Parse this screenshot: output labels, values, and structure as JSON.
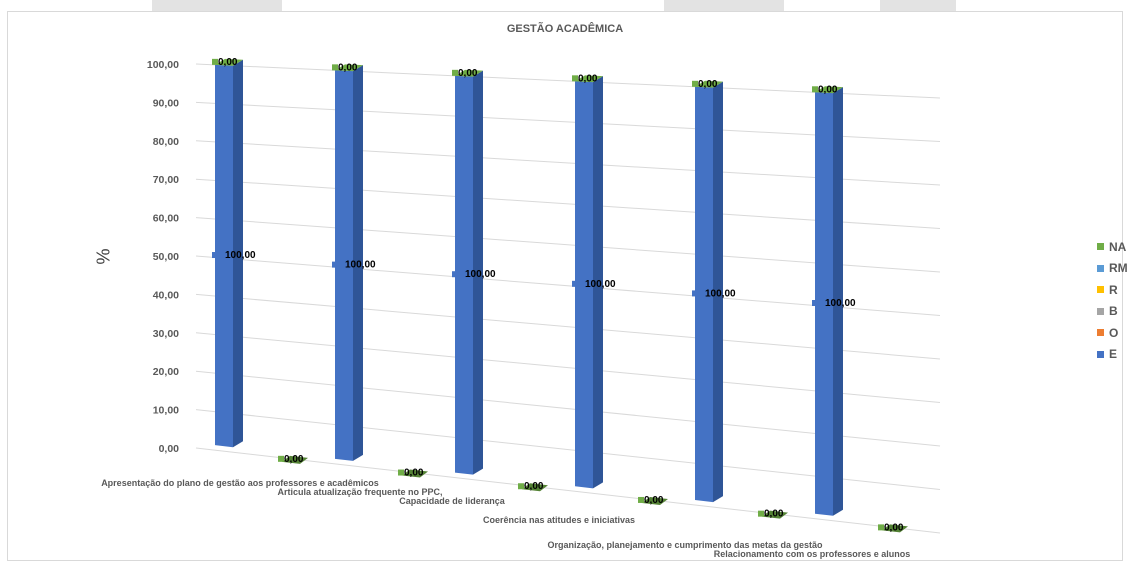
{
  "chart_data": {
    "type": "bar",
    "title": "GESTÃO ACADÊMICA",
    "ylabel": "%",
    "ylim": [
      0,
      100
    ],
    "yticks": [
      "0,00",
      "10,00",
      "20,00",
      "30,00",
      "40,00",
      "50,00",
      "60,00",
      "70,00",
      "80,00",
      "90,00",
      "100,00"
    ],
    "categories": [
      "Apresentação do plano de gestão aos professores e acadêmicos",
      "Articula atualização frequente no PPC,",
      "Capacidade de liderança",
      "Coerência nas atitudes e iniciativas",
      "Organização, planejamento e cumprimento das metas da gestão",
      "Relacionamento com os professores e alunos"
    ],
    "series": [
      {
        "name": "E",
        "color": "#4472c4",
        "values": [
          100,
          100,
          100,
          100,
          100,
          100
        ],
        "labels": [
          "100,00",
          "100,00",
          "100,00",
          "100,00",
          "100,00",
          "100,00"
        ]
      },
      {
        "name": "O",
        "color": "#ed7d31",
        "values": [
          0,
          0,
          0,
          0,
          0,
          0
        ]
      },
      {
        "name": "B",
        "color": "#a5a5a5",
        "values": [
          0,
          0,
          0,
          0,
          0,
          0
        ]
      },
      {
        "name": "R",
        "color": "#ffc000",
        "values": [
          0,
          0,
          0,
          0,
          0,
          0
        ]
      },
      {
        "name": "RM",
        "color": "#5b9bd5",
        "values": [
          0,
          0,
          0,
          0,
          0,
          0
        ]
      },
      {
        "name": "NA",
        "color": "#70ad47",
        "values": [
          0,
          0,
          0,
          0,
          0,
          0
        ],
        "labels": [
          "0,00",
          "0,00",
          "0,00",
          "0,00",
          "0,00",
          "0,00"
        ]
      }
    ],
    "zero_label": "0,00",
    "legend_order": [
      "NA",
      "RM",
      "R",
      "B",
      "O",
      "E"
    ],
    "legend_position": "right",
    "grid": true
  }
}
